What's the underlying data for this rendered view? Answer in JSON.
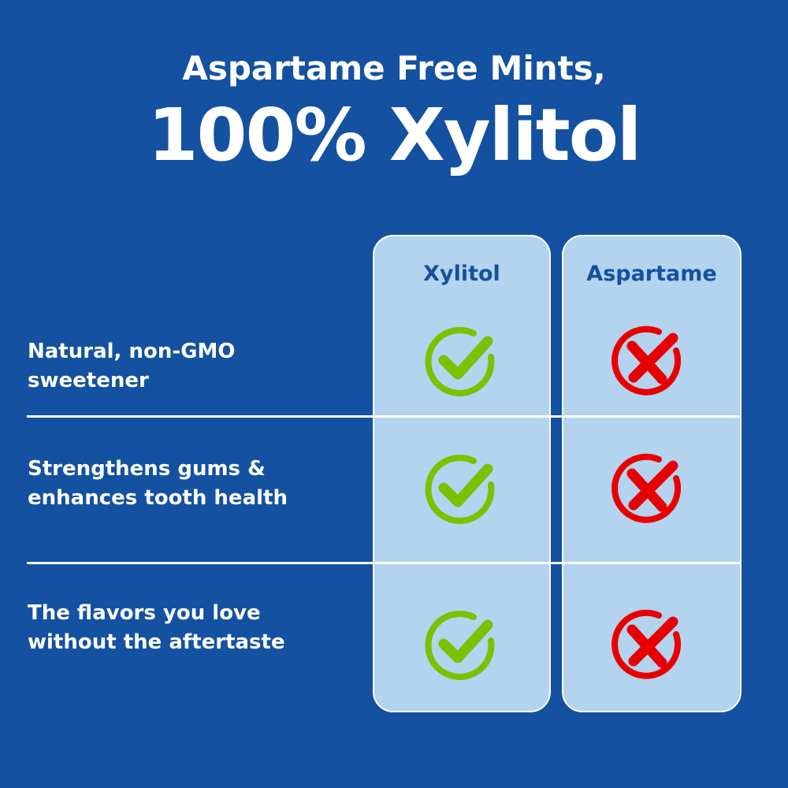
{
  "title": {
    "line1": "Aspartame Free Mints,",
    "line2": "100% Xylitol"
  },
  "columns": [
    {
      "label": "Xylitol"
    },
    {
      "label": "Aspartame"
    }
  ],
  "rows": [
    {
      "label_line1": "Natural, non-GMO",
      "label_line2": "sweetener",
      "xylitol": "check-icon",
      "aspartame": "x-icon"
    },
    {
      "label_line1": "Strengthens gums &",
      "label_line2": "enhances tooth health",
      "xylitol": "check-icon",
      "aspartame": "x-icon"
    },
    {
      "label_line1": "The flavors you love",
      "label_line2": "without the aftertaste",
      "xylitol": "check-icon",
      "aspartame": "x-icon"
    }
  ],
  "colors": {
    "background": "#1451a0",
    "panel": "#b3d3ee",
    "check": "#7cc000",
    "cross": "#e80000"
  }
}
